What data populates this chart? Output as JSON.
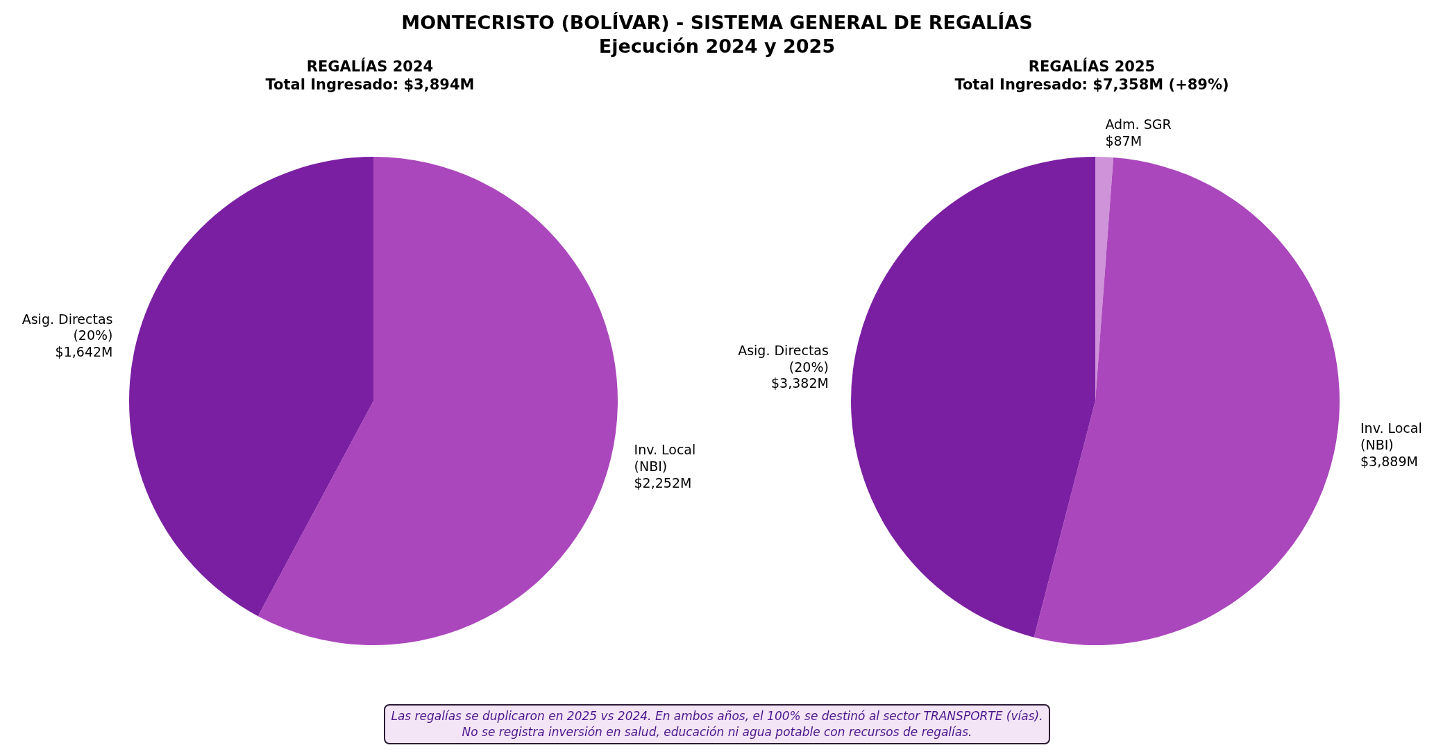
{
  "chart_data": [
    {
      "type": "other",
      "title": "MONTECRISTO (BOLÍVAR) - SISTEMA GENERAL DE REGALÍAS",
      "subtitle": "Ejecución 2024 y 2025"
    },
    {
      "type": "pie",
      "title": "REGALÍAS 2024",
      "subtitle": "Total Ingresado: $3,894M",
      "categories": [
        "Inv. Local (NBI)",
        "Asig. Directas (20%)"
      ],
      "values": [
        2252,
        1642
      ],
      "colors": [
        "#ab47bc",
        "#7b1fa2"
      ],
      "value_labels": [
        "$2,252M",
        "$1,642M"
      ]
    },
    {
      "type": "pie",
      "title": "REGALÍAS 2025",
      "subtitle": "Total Ingresado: $7,358M (+89%)",
      "categories": [
        "Adm. SGR",
        "Inv. Local (NBI)",
        "Asig. Directas (20%)"
      ],
      "values": [
        87,
        3889,
        3382
      ],
      "colors": [
        "#ce93d8",
        "#ab47bc",
        "#7b1fa2"
      ],
      "value_labels": [
        "$87M",
        "$3,889M",
        "$3,382M"
      ]
    },
    {
      "type": "other",
      "annotations": [
        "Las regalías se duplicaron en 2025 vs 2024. En ambos años, el 100% se destinó al sector TRANSPORTE (vías).",
        "No se registra inversión en salud, educación ni agua potable con recursos de regalías."
      ]
    }
  ]
}
